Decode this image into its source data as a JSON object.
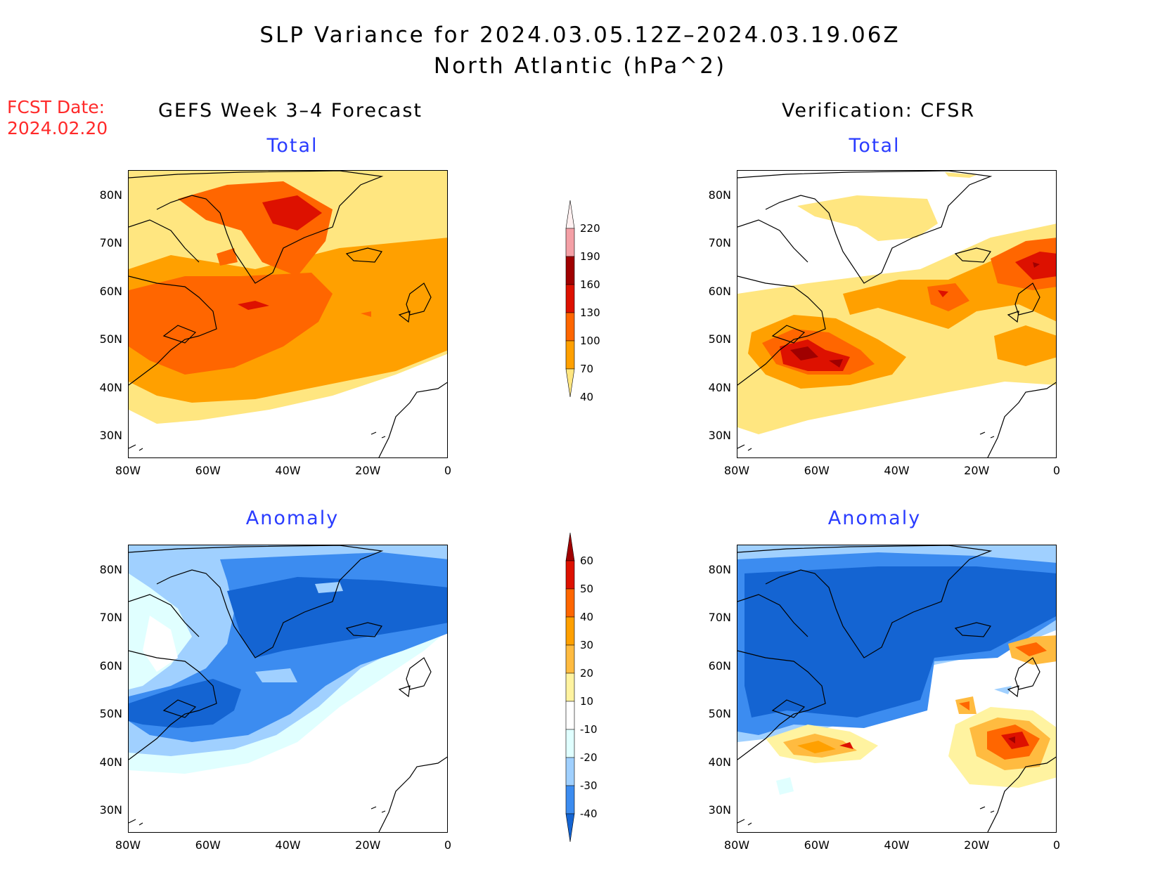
{
  "title": {
    "line1": "SLP Variance for 2024.03.05.12Z–2024.03.19.06Z",
    "line2": "North Atlantic (hPa^2)"
  },
  "fcst_date": {
    "label": "FCST Date:",
    "value": "2024.02.20"
  },
  "columns": {
    "left": "GEFS Week 3–4 Forecast",
    "right": "Verification: CFSR"
  },
  "panels": {
    "top_left": "Total",
    "top_right": "Total",
    "bottom_left": "Anomaly",
    "bottom_right": "Anomaly"
  },
  "axes": {
    "lat_labels": [
      "80N",
      "70N",
      "60N",
      "50N",
      "40N",
      "30N"
    ],
    "lon_labels": [
      "80W",
      "60W",
      "40W",
      "20W",
      "0"
    ]
  },
  "colorbar_total": {
    "levels": [
      "220",
      "190",
      "160",
      "130",
      "100",
      "70",
      "40"
    ],
    "colors": [
      "#fff0f0",
      "#f4a0a6",
      "#a00000",
      "#dd1100",
      "#ff6600",
      "#ffa000",
      "#ffe680"
    ]
  },
  "colorbar_anomaly": {
    "levels": [
      "60",
      "50",
      "40",
      "30",
      "20",
      "10",
      "-10",
      "-20",
      "-30",
      "-40"
    ],
    "colors": [
      "#a00000",
      "#dd1100",
      "#ff6600",
      "#ffa000",
      "#ffbb40",
      "#fff3a0",
      "#ffffff",
      "#e0ffff",
      "#a0d0ff",
      "#3c8cf0",
      "#1464d2"
    ]
  }
}
